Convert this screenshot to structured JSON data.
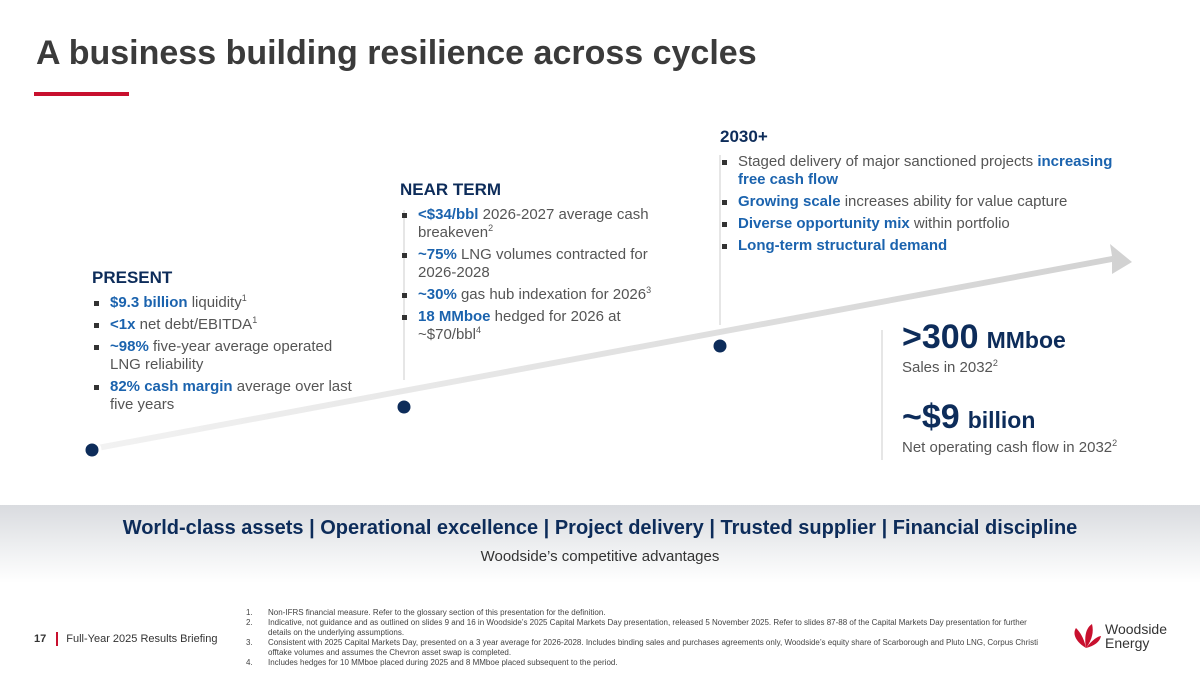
{
  "title": "A business building resilience across cycles",
  "stages": [
    {
      "heading": "PRESENT",
      "bullets": [
        [
          {
            "bold": "$9.3 billion"
          },
          {
            "text": " liquidity"
          },
          {
            "sup": "1"
          }
        ],
        [
          {
            "bold": "<1x"
          },
          {
            "text": " net debt/EBITDA"
          },
          {
            "sup": "1"
          }
        ],
        [
          {
            "bold": "~98%"
          },
          {
            "text": " five-year average operated LNG reliability"
          }
        ],
        [
          {
            "bold": "82% cash margin"
          },
          {
            "text": " average over last five years"
          }
        ]
      ]
    },
    {
      "heading": "NEAR TERM",
      "bullets": [
        [
          {
            "bold": "<$34/bbl"
          },
          {
            "text": " 2026-2027 average cash breakeven"
          },
          {
            "sup": "2"
          }
        ],
        [
          {
            "bold": "~75%"
          },
          {
            "text": " LNG volumes contracted for 2026-2028"
          }
        ],
        [
          {
            "bold": "~30%"
          },
          {
            "text": " gas hub indexation for 2026"
          },
          {
            "sup": "3"
          }
        ],
        [
          {
            "bold": "18 MMboe"
          },
          {
            "text": " hedged for 2026 at ~$70/bbl"
          },
          {
            "sup": "4"
          }
        ]
      ]
    },
    {
      "heading": "2030+",
      "bullets": [
        [
          {
            "text": "Staged delivery of major sanctioned projects "
          },
          {
            "bold": "increasing free cash flow"
          }
        ],
        [
          {
            "bold": "Growing scale"
          },
          {
            "text": " increases ability for value capture"
          }
        ],
        [
          {
            "bold": "Diverse opportunity mix"
          },
          {
            "text": " within portfolio"
          }
        ],
        [
          {
            "bold": "Long-term structural demand"
          }
        ]
      ]
    }
  ],
  "metrics": [
    {
      "value": ">300",
      "unit": "MMboe",
      "caption": "Sales in 2032",
      "sup": "2"
    },
    {
      "value": "~$9",
      "unit": "billion",
      "caption": "Net operating cash flow in 2032",
      "sup": "2"
    }
  ],
  "banner": {
    "headline": "World-class assets | Operational excellence | Project delivery | Trusted supplier | Financial discipline",
    "subtitle": "Woodside’s competitive advantages"
  },
  "footer": {
    "page": "17",
    "event": "Full-Year 2025 Results Briefing",
    "footnotes": [
      {
        "number": "1.",
        "text": "Non-IFRS financial measure. Refer to the glossary section of this presentation for the definition."
      },
      {
        "number": "2.",
        "text": "Indicative, not guidance and as outlined on slides 9 and 16 in Woodside’s 2025 Capital Markets Day presentation, released 5 November 2025. Refer to slides 87-88 of the Capital Markets Day presentation for further details on the underlying assumptions."
      },
      {
        "number": "3.",
        "text": "Consistent with 2025 Capital Markets Day, presented on a 3 year average for 2026-2028. Includes binding sales and purchases agreements only, Woodside’s equity share of Scarborough and Pluto LNG, Corpus Christi offtake volumes and assumes the Chevron asset swap is completed."
      },
      {
        "number": "4.",
        "text": "Includes hedges for 10 MMboe placed during 2025 and 8 MMboe placed subsequent to the period."
      }
    ]
  },
  "logo": {
    "line1": "Woodside",
    "line2": "Energy"
  }
}
